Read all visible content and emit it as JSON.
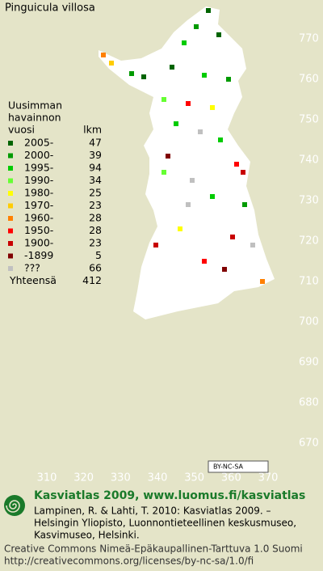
{
  "map": {
    "title": "Pinguicula villosa",
    "ylim": [
      670,
      770
    ],
    "yticks": [
      770,
      760,
      750,
      740,
      730,
      720,
      710,
      700,
      690,
      680,
      670
    ],
    "xlim": [
      310,
      370
    ],
    "xticks": [
      310,
      320,
      330,
      340,
      350,
      360,
      370
    ]
  },
  "legend": {
    "heading": [
      "Uusimman",
      "havainnon",
      "vuosi"
    ],
    "count_heading": "lkm",
    "items": [
      {
        "label": "2005-",
        "count": 47,
        "color": "#006400"
      },
      {
        "label": "2000-",
        "count": 39,
        "color": "#009a00"
      },
      {
        "label": "1995-",
        "count": 94,
        "color": "#00cc00"
      },
      {
        "label": "1990-",
        "count": 34,
        "color": "#66ff33"
      },
      {
        "label": "1980-",
        "count": 25,
        "color": "#ffff00"
      },
      {
        "label": "1970-",
        "count": 23,
        "color": "#ffcc00"
      },
      {
        "label": "1960-",
        "count": 28,
        "color": "#ff8000"
      },
      {
        "label": "1950-",
        "count": 28,
        "color": "#ff0000"
      },
      {
        "label": "1900-",
        "count": 23,
        "color": "#c80000"
      },
      {
        "label": "-1899",
        "count": 5,
        "color": "#800000"
      },
      {
        "label": "???",
        "count": 66,
        "color": "#c0c0c0"
      }
    ],
    "total": {
      "label": "Yhteensä",
      "count": 412
    }
  },
  "badge": "BY-NC-SA",
  "footer": {
    "site": "Kasviatlas 2009, www.luomus.fi/kasviatlas",
    "citation": [
      "Lampinen, R. & Lahti, T. 2010: Kasviatlas 2009. –",
      "Helsingin Yliopisto, Luonnontieteellinen keskusmuseo,",
      "Kasvimuseo, Helsinki."
    ],
    "license": [
      "Creative Commons Nimeä-Epäkaupallinen-Tarttuva 1.0 Suomi",
      "http://creativecommons.org/licenses/by-nc-sa/1.0/fi"
    ]
  }
}
